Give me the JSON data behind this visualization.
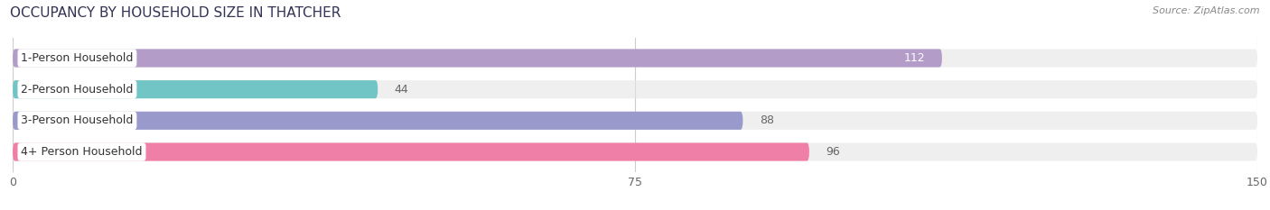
{
  "title": "OCCUPANCY BY HOUSEHOLD SIZE IN THATCHER",
  "source": "Source: ZipAtlas.com",
  "categories": [
    "1-Person Household",
    "2-Person Household",
    "3-Person Household",
    "4+ Person Household"
  ],
  "values": [
    112,
    44,
    88,
    96
  ],
  "bar_colors": [
    "#b39cc8",
    "#72c5c5",
    "#9999cc",
    "#f07fa8"
  ],
  "bar_bg_color": "#e5e5e5",
  "xlim": [
    0,
    150
  ],
  "xticks": [
    0,
    75,
    150
  ],
  "title_fontsize": 11,
  "source_fontsize": 8,
  "tick_fontsize": 9,
  "bar_label_fontsize": 9,
  "category_fontsize": 9,
  "background_color": "#ffffff",
  "value_inside_threshold": 100,
  "inside_label_color": "#ffffff",
  "outside_label_color": "#666666"
}
